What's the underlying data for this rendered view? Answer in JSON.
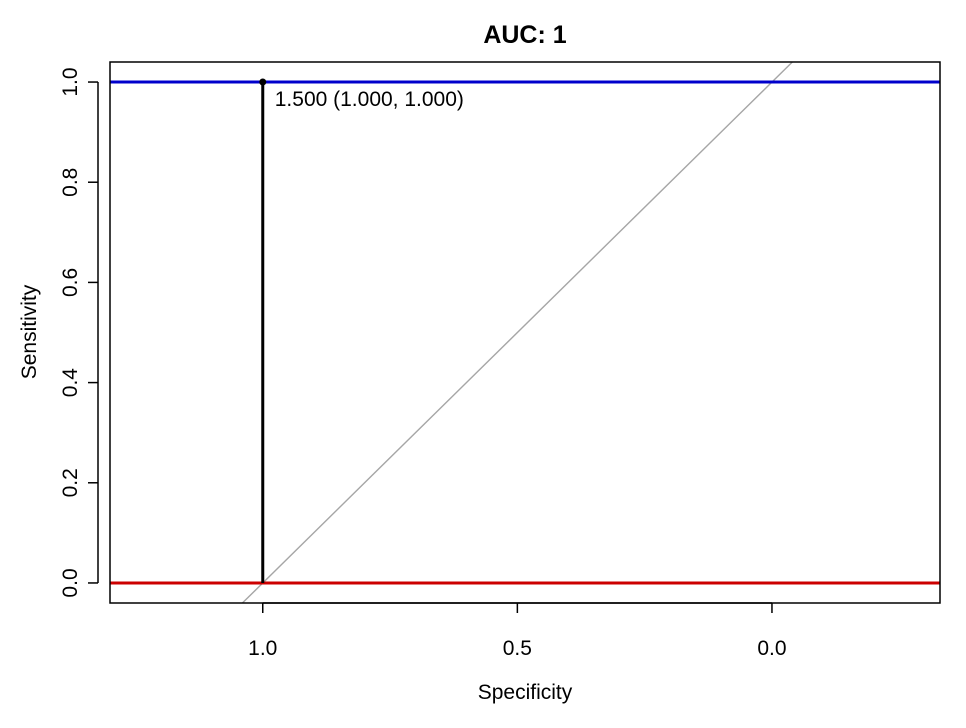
{
  "chart_data": {
    "type": "line",
    "title": "AUC: 1",
    "xlabel": "Specificity",
    "ylabel": "Sensitivity",
    "xlim": [
      1.3,
      -0.33
    ],
    "ylim": [
      -0.04,
      1.04
    ],
    "x_ticks": [
      1.0,
      0.5,
      0.0
    ],
    "x_tick_labels": [
      "1.0",
      "0.5",
      "0.0"
    ],
    "y_ticks": [
      0.0,
      0.2,
      0.4,
      0.6,
      0.8,
      1.0
    ],
    "y_tick_labels": [
      "0.0",
      "0.2",
      "0.4",
      "0.6",
      "0.8",
      "1.0"
    ],
    "grid": false,
    "series": [
      {
        "values": [
          {
            "x": 1.0,
            "y": 0.0
          },
          {
            "x": 1.0,
            "y": 1.0
          }
        ],
        "color": "#000000"
      }
    ],
    "reference_lines": [
      {
        "orientation": "horizontal",
        "y": 1.0,
        "color": "#0000cc"
      },
      {
        "orientation": "horizontal",
        "y": 0.0,
        "color": "#cc0000"
      }
    ],
    "diagonal": {
      "from": {
        "x": 1.0,
        "y": 0.0
      },
      "to": {
        "x": 0.0,
        "y": 1.0
      },
      "color": "#a6a6a6"
    },
    "annotations": [
      {
        "x": 1.0,
        "y": 1.0,
        "text": "1.500 (1.000, 1.000)"
      }
    ]
  }
}
